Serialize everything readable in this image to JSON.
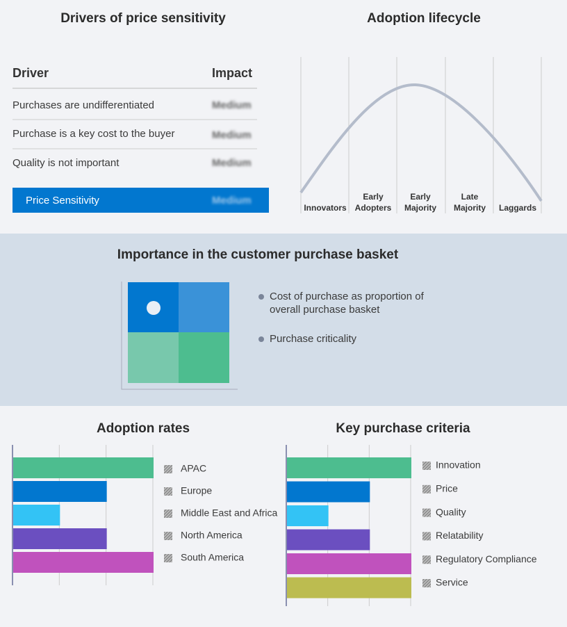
{
  "price_sensitivity": {
    "title": "Drivers of price sensitivity",
    "headers": [
      "Driver",
      "Impact"
    ],
    "rows": [
      [
        "Purchases are undifferentiated",
        "Medium"
      ],
      [
        "Purchase is a key cost to the buyer",
        "Medium"
      ],
      [
        "Quality is not important",
        "Medium"
      ]
    ],
    "summary": [
      "Price Sensitivity",
      "Medium"
    ]
  },
  "adoption_lifecycle": {
    "title": "Adoption lifecycle",
    "stages": [
      "Innovators",
      "Early Adopters",
      "Early Majority",
      "Late Majority",
      "Laggards"
    ]
  },
  "purchase_basket": {
    "title": "Importance in the customer purchase basket",
    "legend": [
      "Cost of purchase as proportion of overall purchase basket",
      "Purchase criticality"
    ]
  },
  "chart_data": [
    {
      "type": "bar",
      "title": "Adoption rates",
      "categories": [
        "APAC",
        "Europe",
        "Middle East and Africa",
        "North America",
        "South America"
      ],
      "values": [
        3,
        2,
        1,
        2,
        3
      ],
      "colors": [
        "#4dbd8f",
        "#0277cf",
        "#33c3f5",
        "#6b4fc0",
        "#c052bd"
      ],
      "xlim": [
        0,
        3
      ],
      "xticks": [
        0,
        1,
        2,
        3
      ],
      "grid": true
    },
    {
      "type": "bar",
      "title": "Key purchase criteria",
      "categories": [
        "Innovation",
        "Price",
        "Quality",
        "Relatability",
        "Regulatory Compliance",
        "Service"
      ],
      "values": [
        3,
        2,
        1,
        2,
        3,
        3
      ],
      "colors": [
        "#4dbd8f",
        "#0277cf",
        "#33c3f5",
        "#6b4fc0",
        "#c052bd",
        "#bcbc50"
      ],
      "xlim": [
        0,
        3
      ],
      "xticks": [
        0,
        1,
        2,
        3
      ],
      "grid": true
    }
  ]
}
